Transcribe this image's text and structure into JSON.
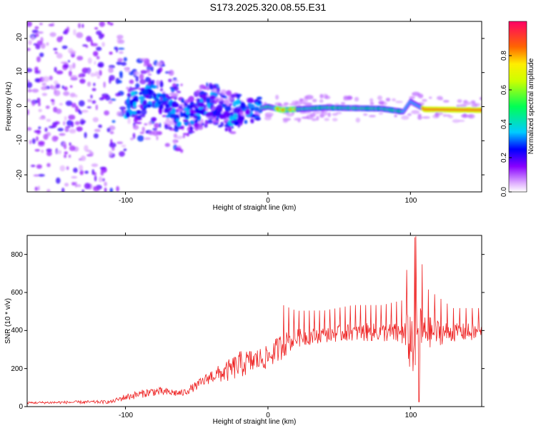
{
  "title": "S173.2025.320.08.55.E31",
  "chart_data": [
    {
      "type": "heatmap",
      "title": "S173.2025.320.08.55.E31",
      "xlabel": "Height of straight line (km)",
      "ylabel": "Frequency (Hz)",
      "xlim": [
        -169,
        150
      ],
      "ylim": [
        -25,
        25
      ],
      "xticks": [
        "-100",
        "0",
        "100"
      ],
      "yticks": [
        "-20",
        "-10",
        "0",
        "10",
        "20"
      ],
      "colorbar": {
        "label": "Normalized spectral amplitude",
        "range": [
          0.0,
          1.0
        ],
        "ticks": [
          "0.0",
          "0.2",
          "0.4",
          "0.6",
          "0.8"
        ]
      },
      "ridge": [
        {
          "x": -100,
          "f": 0
        },
        {
          "x": -80,
          "f": 3
        },
        {
          "x": -60,
          "f": -3
        },
        {
          "x": -40,
          "f": 1
        },
        {
          "x": -25,
          "f": -2
        },
        {
          "x": -10,
          "f": -1
        },
        {
          "x": 0,
          "f": 0
        },
        {
          "x": 10,
          "f": -1
        },
        {
          "x": 40,
          "f": -0.3
        },
        {
          "x": 80,
          "f": -0.6
        },
        {
          "x": 95,
          "f": -1.5
        },
        {
          "x": 100,
          "f": 1.5
        },
        {
          "x": 110,
          "f": -0.8
        },
        {
          "x": 150,
          "f": -1
        }
      ]
    },
    {
      "type": "line",
      "xlabel": "Height of straight line (km)",
      "ylabel": "SNR (10 * v/v)",
      "xlim": [
        -169,
        150
      ],
      "ylim": [
        0,
        900
      ],
      "xticks": [
        "-100",
        "0",
        "100"
      ],
      "yticks": [
        "0",
        "200",
        "400",
        "600",
        "800"
      ],
      "series": [
        {
          "name": "SNR",
          "color": "#ee2222",
          "envelope": [
            {
              "x": -169,
              "base": 20,
              "amp": 10
            },
            {
              "x": -110,
              "base": 25,
              "amp": 15
            },
            {
              "x": -100,
              "base": 50,
              "amp": 30
            },
            {
              "x": -80,
              "base": 80,
              "amp": 40
            },
            {
              "x": -60,
              "base": 70,
              "amp": 30
            },
            {
              "x": -50,
              "base": 110,
              "amp": 40
            },
            {
              "x": -40,
              "base": 160,
              "amp": 60
            },
            {
              "x": -30,
              "base": 180,
              "amp": 90
            },
            {
              "x": -20,
              "base": 220,
              "amp": 120
            },
            {
              "x": -10,
              "base": 240,
              "amp": 110
            },
            {
              "x": 0,
              "base": 260,
              "amp": 100
            },
            {
              "x": 10,
              "base": 320,
              "amp": 120
            },
            {
              "x": 20,
              "base": 360,
              "amp": 80
            },
            {
              "x": 40,
              "base": 380,
              "amp": 70
            },
            {
              "x": 60,
              "base": 390,
              "amp": 80
            },
            {
              "x": 80,
              "base": 390,
              "amp": 80
            },
            {
              "x": 95,
              "base": 380,
              "amp": 100
            },
            {
              "x": 100,
              "base": 350,
              "amp": 300
            },
            {
              "x": 105,
              "base": 350,
              "amp": 380
            },
            {
              "x": 110,
              "base": 390,
              "amp": 150
            },
            {
              "x": 130,
              "base": 390,
              "amp": 80
            },
            {
              "x": 150,
              "base": 390,
              "amp": 80
            }
          ]
        }
      ]
    }
  ]
}
